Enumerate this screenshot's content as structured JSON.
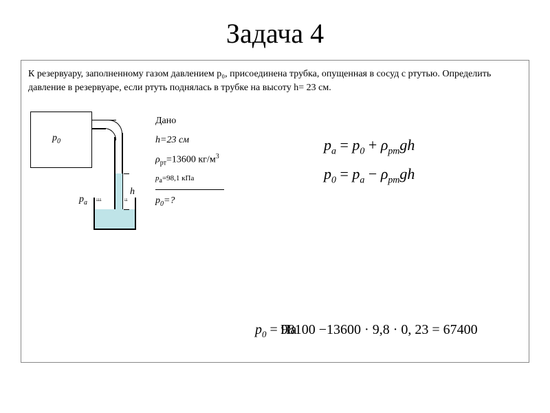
{
  "title": "Задача 4",
  "problem_text": "К резервуару, заполненному газом давлением p₀, присоединена трубка, опущенная в сосуд с ртутью. Определить давление в резервуаре, если ртуть поднялась в трубке на высоту h= 23 см.",
  "diagram": {
    "p0_label": "p",
    "p0_sub": "0",
    "pa_label": "p",
    "pa_sub": "a",
    "h_label": "h",
    "mercury_color": "#bfe4e8",
    "line_color": "#000000"
  },
  "given": {
    "header": "Дано",
    "line1": "h=23 см",
    "line2_left": "ρ",
    "line2_sub": "рт",
    "line2_right": "=13600 кг/м",
    "line2_sup": "3",
    "line3_left": "p",
    "line3_sub": "а",
    "line3_right": "=98,1 кПа",
    "find_left": "p",
    "find_sub": "0",
    "find_right": "=?"
  },
  "equations": {
    "eq1": {
      "lhs_var": "p",
      "lhs_sub": "a",
      "eq": " = ",
      "r1": "p",
      "r1s": "0",
      "plus": " + ",
      "rho": "ρ",
      "rhos": "рт",
      "gh": "gh"
    },
    "eq2": {
      "lhs_var": "p",
      "lhs_sub": "0",
      "eq": " = ",
      "r1": "p",
      "r1s": "a",
      "minus": " − ",
      "rho": "ρ",
      "rhos": "рт",
      "gh": "gh"
    }
  },
  "solution": {
    "lhs": "p",
    "lhs_sub": "0",
    "overlap": "Па",
    "expr": " = 98100 −13600 · 9,8 · 0, 23 = 67400"
  },
  "colors": {
    "background": "#ffffff",
    "border": "#888888",
    "text": "#000000"
  }
}
